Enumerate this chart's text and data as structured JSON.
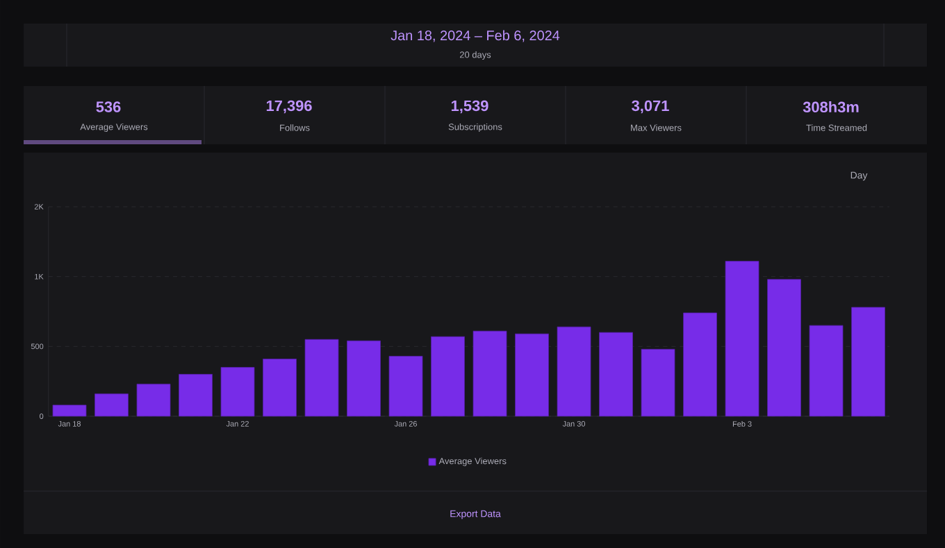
{
  "chart_data": {
    "type": "bar",
    "title": "Jan 18, 2024 – Feb 6, 2024",
    "subtitle": "20 days",
    "annotations": [
      "536",
      "Average Viewers",
      "17,396",
      "Follows",
      "1,539",
      "Subscriptions",
      "3,071",
      "Max Viewers",
      "308h3m",
      "Time Streamed",
      "Day",
      "Export Data"
    ],
    "categories": [
      "Jan 18",
      null,
      null,
      null,
      "Jan 22",
      null,
      null,
      null,
      "Jan 26",
      null,
      null,
      null,
      "Jan 30",
      null,
      null,
      null,
      "Feb 3",
      null,
      null,
      null
    ],
    "series": [
      {
        "name": "Average Viewers",
        "color": "#772ce8",
        "values": [
          80,
          160,
          230,
          300,
          350,
          410,
          550,
          540,
          430,
          570,
          610,
          590,
          640,
          600,
          480,
          740,
          1110,
          980,
          650,
          780
        ]
      }
    ],
    "ylim": [
      0,
      1500
    ],
    "yticks": [
      0,
      500,
      {
        "value": 1000,
        "label": "1K"
      },
      {
        "value": 1500,
        "label": "2K"
      }
    ],
    "grid": "y",
    "legend": "bottom"
  }
}
